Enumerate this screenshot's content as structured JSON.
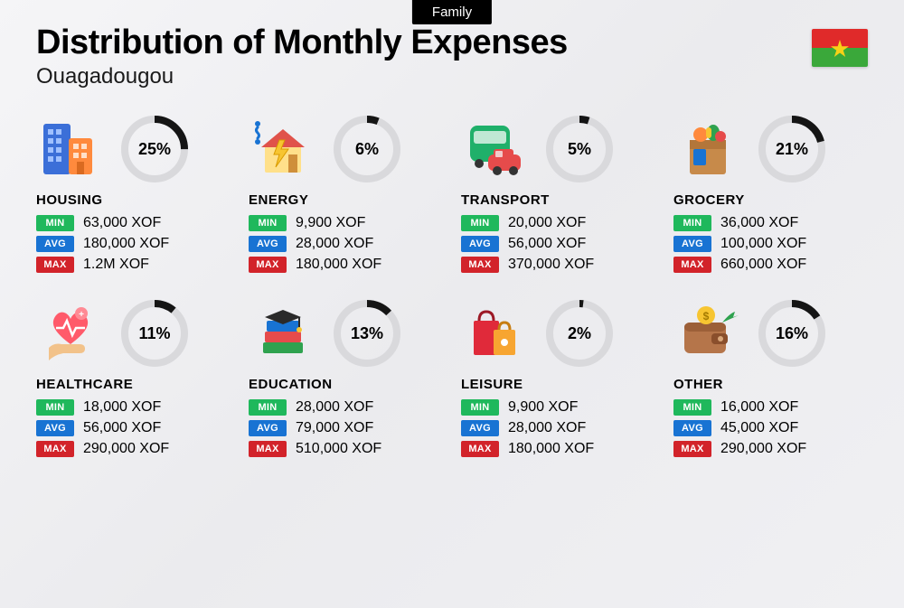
{
  "badge": "Family",
  "title": "Distribution of Monthly Expenses",
  "subtitle": "Ouagadougou",
  "flag": {
    "top_color": "#e02a2a",
    "bottom_color": "#3aa83a",
    "star_color": "#f7d117"
  },
  "donut_style": {
    "bg_stroke": "#d9d9dc",
    "fg_stroke": "#151515",
    "stroke_width": 8,
    "radius": 33
  },
  "tag_colors": {
    "min": "#1fb85c",
    "avg": "#1873d3",
    "max": "#d2232a"
  },
  "tag_labels": {
    "min": "MIN",
    "avg": "AVG",
    "max": "MAX"
  },
  "categories": [
    {
      "key": "housing",
      "name": "HOUSING",
      "percent": 25,
      "min": "63,000 XOF",
      "avg": "180,000 XOF",
      "max": "1.2M XOF",
      "icon": "buildings"
    },
    {
      "key": "energy",
      "name": "ENERGY",
      "percent": 6,
      "min": "9,900 XOF",
      "avg": "28,000 XOF",
      "max": "180,000 XOF",
      "icon": "house-bolt"
    },
    {
      "key": "transport",
      "name": "TRANSPORT",
      "percent": 5,
      "min": "20,000 XOF",
      "avg": "56,000 XOF",
      "max": "370,000 XOF",
      "icon": "bus-car"
    },
    {
      "key": "grocery",
      "name": "GROCERY",
      "percent": 21,
      "min": "36,000 XOF",
      "avg": "100,000 XOF",
      "max": "660,000 XOF",
      "icon": "grocery-bag"
    },
    {
      "key": "healthcare",
      "name": "HEALTHCARE",
      "percent": 11,
      "min": "18,000 XOF",
      "avg": "56,000 XOF",
      "max": "290,000 XOF",
      "icon": "heart-hand"
    },
    {
      "key": "education",
      "name": "EDUCATION",
      "percent": 13,
      "min": "28,000 XOF",
      "avg": "79,000 XOF",
      "max": "510,000 XOF",
      "icon": "grad-books"
    },
    {
      "key": "leisure",
      "name": "LEISURE",
      "percent": 2,
      "min": "9,900 XOF",
      "avg": "28,000 XOF",
      "max": "180,000 XOF",
      "icon": "shopping-bags"
    },
    {
      "key": "other",
      "name": "OTHER",
      "percent": 16,
      "min": "16,000 XOF",
      "avg": "45,000 XOF",
      "max": "290,000 XOF",
      "icon": "wallet-arrow"
    }
  ]
}
